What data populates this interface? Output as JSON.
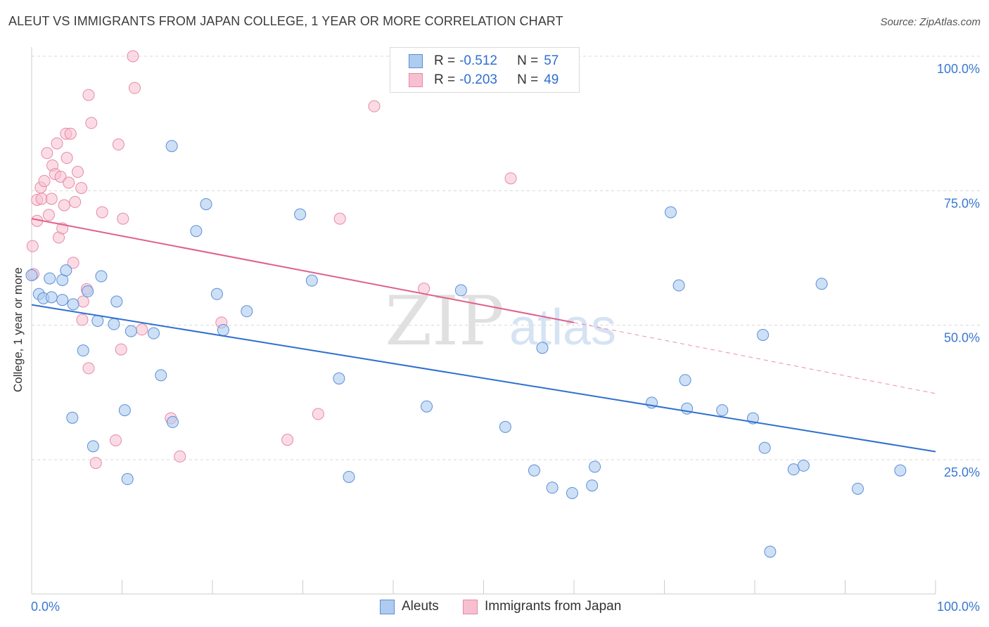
{
  "header": {
    "title": "ALEUT VS IMMIGRANTS FROM JAPAN COLLEGE, 1 YEAR OR MORE CORRELATION CHART",
    "source": "Source: ZipAtlas.com"
  },
  "legend": {
    "rows": [
      {
        "r_label": "R =",
        "r_value": "-0.512",
        "n_label": "N =",
        "n_value": "57"
      },
      {
        "r_label": "R =",
        "r_value": "-0.203",
        "n_label": "N =",
        "n_value": "49"
      }
    ]
  },
  "watermark": {
    "zip": "ZIP",
    "atlas": "atlas"
  },
  "colors": {
    "aleut_fill": "#aecbf0",
    "aleut_stroke": "#5b8fd6",
    "aleut_line": "#2f6fd0",
    "japan_fill": "#f7bfd0",
    "japan_stroke": "#e68aa8",
    "japan_line": "#e0608a",
    "axis_label_blue": "#3a78d0",
    "grid": "#d8d8d8"
  },
  "chart_data": {
    "type": "scatter",
    "title": "ALEUT VS IMMIGRANTS FROM JAPAN COLLEGE, 1 YEAR OR MORE CORRELATION CHART",
    "xlabel": "",
    "ylabel": "College, 1 year or more",
    "x_tick_labels": [
      "0.0%",
      "100.0%"
    ],
    "y_tick_labels": [
      "100.0%",
      "75.0%",
      "50.0%",
      "25.0%"
    ],
    "xlim": [
      0,
      100
    ],
    "ylim": [
      0,
      102
    ],
    "y_ticks": [
      100,
      75,
      50,
      25
    ],
    "grid": true,
    "legend_position": "top-center",
    "series": [
      {
        "name": "Aleuts",
        "r": -0.512,
        "n": 57,
        "trend": {
          "x0": 0,
          "y0": 53.8,
          "x1": 100,
          "y1": 26.5
        },
        "points": [
          [
            0.0,
            59.3
          ],
          [
            0.8,
            55.8
          ],
          [
            1.3,
            55.0
          ],
          [
            2.0,
            58.7
          ],
          [
            2.2,
            55.2
          ],
          [
            3.4,
            58.4
          ],
          [
            3.4,
            54.7
          ],
          [
            3.8,
            60.2
          ],
          [
            4.5,
            32.8
          ],
          [
            4.6,
            53.9
          ],
          [
            5.7,
            45.3
          ],
          [
            6.2,
            56.3
          ],
          [
            6.8,
            27.5
          ],
          [
            7.3,
            50.8
          ],
          [
            7.7,
            59.1
          ],
          [
            9.1,
            50.2
          ],
          [
            9.4,
            54.4
          ],
          [
            10.3,
            34.2
          ],
          [
            10.6,
            21.4
          ],
          [
            11.0,
            48.9
          ],
          [
            13.5,
            48.5
          ],
          [
            14.3,
            40.7
          ],
          [
            15.5,
            83.3
          ],
          [
            15.6,
            32.0
          ],
          [
            18.2,
            67.5
          ],
          [
            19.3,
            72.5
          ],
          [
            20.5,
            55.8
          ],
          [
            21.2,
            49.1
          ],
          [
            23.8,
            52.6
          ],
          [
            29.7,
            70.6
          ],
          [
            31.0,
            58.3
          ],
          [
            34.0,
            40.1
          ],
          [
            35.1,
            21.8
          ],
          [
            43.7,
            34.9
          ],
          [
            47.5,
            56.5
          ],
          [
            52.4,
            31.1
          ],
          [
            55.6,
            23.0
          ],
          [
            56.5,
            45.8
          ],
          [
            57.6,
            19.8
          ],
          [
            59.8,
            18.8
          ],
          [
            62.0,
            20.2
          ],
          [
            62.3,
            23.7
          ],
          [
            68.6,
            35.6
          ],
          [
            70.7,
            71.0
          ],
          [
            71.6,
            57.4
          ],
          [
            72.3,
            39.8
          ],
          [
            72.5,
            34.5
          ],
          [
            76.4,
            34.2
          ],
          [
            79.8,
            32.7
          ],
          [
            80.9,
            48.2
          ],
          [
            81.1,
            27.2
          ],
          [
            81.7,
            7.9
          ],
          [
            84.3,
            23.2
          ],
          [
            85.4,
            23.9
          ],
          [
            87.4,
            57.7
          ],
          [
            91.4,
            19.6
          ],
          [
            96.1,
            23.0
          ]
        ]
      },
      {
        "name": "Immigrants from Japan",
        "r": -0.203,
        "n": 49,
        "trend": {
          "x0": 0,
          "y0": 69.8,
          "x1": 60,
          "y1": 50.5
        },
        "trend_ext": {
          "x0": 60,
          "y0": 50.5,
          "x1": 100,
          "y1": 37.3
        },
        "points": [
          [
            0.1,
            64.7
          ],
          [
            0.2,
            59.5
          ],
          [
            0.6,
            69.4
          ],
          [
            0.6,
            73.3
          ],
          [
            1.0,
            75.6
          ],
          [
            1.1,
            73.5
          ],
          [
            1.4,
            76.8
          ],
          [
            1.7,
            82.0
          ],
          [
            1.9,
            70.5
          ],
          [
            2.2,
            73.5
          ],
          [
            2.3,
            79.7
          ],
          [
            2.6,
            78.1
          ],
          [
            2.8,
            83.8
          ],
          [
            3.0,
            66.3
          ],
          [
            3.2,
            77.6
          ],
          [
            3.4,
            68.0
          ],
          [
            3.6,
            72.3
          ],
          [
            3.8,
            85.6
          ],
          [
            3.9,
            81.1
          ],
          [
            4.1,
            76.5
          ],
          [
            4.3,
            85.6
          ],
          [
            4.6,
            61.6
          ],
          [
            4.8,
            72.9
          ],
          [
            5.1,
            78.5
          ],
          [
            5.5,
            75.5
          ],
          [
            5.6,
            51.0
          ],
          [
            5.7,
            54.4
          ],
          [
            6.1,
            56.7
          ],
          [
            6.3,
            42.0
          ],
          [
            6.3,
            92.8
          ],
          [
            6.6,
            87.6
          ],
          [
            7.1,
            24.4
          ],
          [
            7.8,
            71.0
          ],
          [
            9.3,
            28.6
          ],
          [
            9.6,
            83.6
          ],
          [
            9.9,
            45.5
          ],
          [
            10.1,
            69.8
          ],
          [
            11.2,
            100.0
          ],
          [
            11.4,
            94.1
          ],
          [
            12.2,
            49.2
          ],
          [
            15.4,
            32.7
          ],
          [
            16.4,
            25.6
          ],
          [
            21.0,
            50.5
          ],
          [
            28.3,
            28.7
          ],
          [
            31.7,
            33.5
          ],
          [
            34.1,
            69.8
          ],
          [
            37.9,
            90.7
          ],
          [
            43.4,
            56.8
          ],
          [
            53.0,
            77.3
          ]
        ]
      }
    ]
  }
}
